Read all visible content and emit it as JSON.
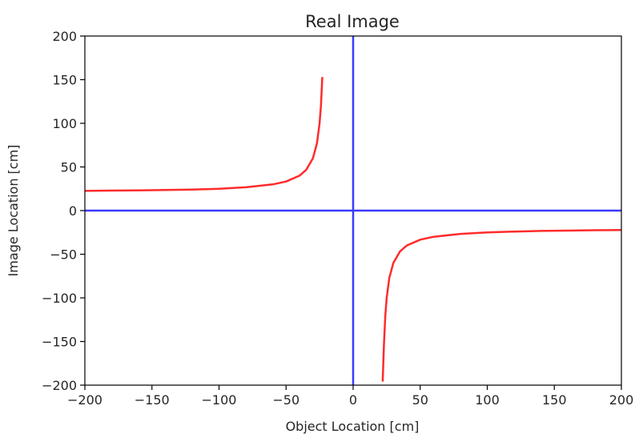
{
  "chart_data": {
    "type": "line",
    "title": "Real Image",
    "xlabel": "Object Location [cm]",
    "ylabel": "Image Location [cm]",
    "xlim": [
      -200,
      200
    ],
    "ylim": [
      -200,
      200
    ],
    "xticks": [
      -200,
      -150,
      -100,
      -50,
      0,
      50,
      100,
      150,
      200
    ],
    "yticks": [
      -200,
      -150,
      -100,
      -50,
      0,
      50,
      100,
      150,
      200
    ],
    "grid": false,
    "colors": {
      "curve": "#ff2b2b",
      "axes_lines": "#3a3aff"
    },
    "series": [
      {
        "color": "#ff2b2b",
        "x": [
          -200,
          -180,
          -160,
          -140,
          -120,
          -100,
          -80,
          -60,
          -50,
          -40,
          -35,
          -30,
          -27,
          -25,
          -24,
          -23
        ],
        "y": [
          22.6,
          22.9,
          23.2,
          23.6,
          24.1,
          25,
          26.7,
          30,
          33.3,
          40,
          46.7,
          60,
          77,
          100,
          120,
          153
        ]
      },
      {
        "color": "#ff2b2b",
        "x": [
          22,
          23,
          24,
          25,
          27,
          30,
          35,
          40,
          50,
          60,
          80,
          100,
          120,
          140,
          160,
          180,
          200
        ],
        "y": [
          -196,
          -153,
          -120,
          -100,
          -77,
          -60,
          -46.7,
          -40,
          -33.3,
          -30,
          -26.7,
          -25,
          -24,
          -23.3,
          -22.9,
          -22.5,
          -22.2
        ]
      }
    ],
    "reference_lines": [
      {
        "orientation": "vertical",
        "value": 0,
        "color": "#3a3aff"
      },
      {
        "orientation": "horizontal",
        "value": 0,
        "color": "#3a3aff"
      }
    ]
  }
}
